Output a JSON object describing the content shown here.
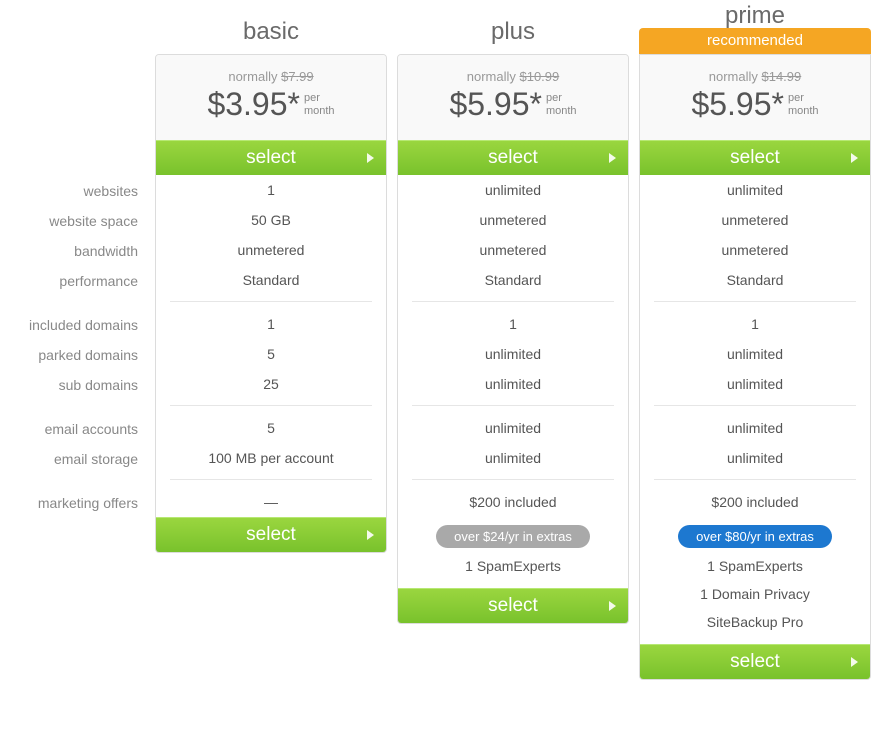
{
  "colors": {
    "select_gradient_top": "#9ad63f",
    "select_gradient_bottom": "#79c22c",
    "banner_bg": "#f5a623",
    "pill_gray": "#a9a9a9",
    "pill_blue": "#1d78d0",
    "border": "#dcdcdc",
    "text_muted": "#888",
    "text_body": "#555"
  },
  "labels": {
    "websites": "websites",
    "website_space": "website space",
    "bandwidth": "bandwidth",
    "performance": "performance",
    "included_domains": "included domains",
    "parked_domains": "parked domains",
    "sub_domains": "sub domains",
    "email_accounts": "email accounts",
    "email_storage": "email storage",
    "marketing_offers": "marketing offers"
  },
  "shared": {
    "normally_prefix": "normally",
    "per": "per",
    "month": "month",
    "select": "select"
  },
  "plans": {
    "basic": {
      "title": "basic",
      "original_price": "$7.99",
      "price": "$3.95*",
      "features": {
        "websites": "1",
        "website_space": "50 GB",
        "bandwidth": "unmetered",
        "performance": "Standard",
        "included_domains": "1",
        "parked_domains": "5",
        "sub_domains": "25",
        "email_accounts": "5",
        "email_storage": "100 MB per account",
        "marketing_offers": "—"
      }
    },
    "plus": {
      "title": "plus",
      "original_price": "$10.99",
      "price": "$5.95*",
      "features": {
        "websites": "unlimited",
        "website_space": "unmetered",
        "bandwidth": "unmetered",
        "performance": "Standard",
        "included_domains": "1",
        "parked_domains": "unlimited",
        "sub_domains": "unlimited",
        "email_accounts": "unlimited",
        "email_storage": "unlimited",
        "marketing_offers": "$200 included"
      },
      "extras_pill": "over $24/yr in extras",
      "extras": {
        "0": "1 SpamExperts"
      }
    },
    "prime": {
      "title": "prime",
      "banner": "recommended",
      "original_price": "$14.99",
      "price": "$5.95*",
      "features": {
        "websites": "unlimited",
        "website_space": "unmetered",
        "bandwidth": "unmetered",
        "performance": "Standard",
        "included_domains": "1",
        "parked_domains": "unlimited",
        "sub_domains": "unlimited",
        "email_accounts": "unlimited",
        "email_storage": "unlimited",
        "marketing_offers": "$200 included"
      },
      "extras_pill": "over $80/yr in extras",
      "extras": {
        "0": "1 SpamExperts",
        "1": "1 Domain Privacy",
        "2": "SiteBackup Pro"
      }
    }
  }
}
